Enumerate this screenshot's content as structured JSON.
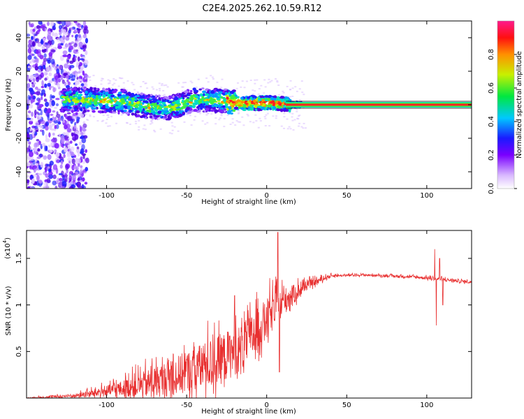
{
  "title": "C2E4.2025.262.10.59.R12",
  "chart_data": [
    {
      "type": "heatmap",
      "name": "spectrogram",
      "xlabel": "Height of straight line (km)",
      "ylabel": "Frequency (Hz)",
      "xlim": [
        -150,
        128
      ],
      "ylim": [
        -50,
        50
      ],
      "xticks": [
        -100,
        -50,
        0,
        50,
        100
      ],
      "yticks": [
        -40,
        -20,
        0,
        20,
        40
      ],
      "colorbar": {
        "label": "Normalized spectral amplitude",
        "range": [
          0,
          1
        ],
        "ticks": [
          0.0,
          0.2,
          0.4,
          0.6,
          0.8
        ]
      },
      "ridge": {
        "description_points": [
          [
            -128,
            3
          ],
          [
            -110,
            3
          ],
          [
            -90,
            2
          ],
          [
            -75,
            -1
          ],
          [
            -60,
            -2
          ],
          [
            -45,
            3
          ],
          [
            -35,
            3
          ],
          [
            -25,
            2
          ],
          [
            -15,
            1
          ],
          [
            -5,
            1
          ],
          [
            5,
            1
          ],
          [
            15,
            0
          ],
          [
            128,
            0
          ]
        ]
      }
    },
    {
      "type": "line",
      "name": "snr",
      "xlabel": "Height of straight line (km)",
      "ylabel": "SNR (10 * v/v)",
      "yscale_label": "(x10",
      "yscale_exp": "4",
      "xlim": [
        -150,
        128
      ],
      "ylim": [
        0,
        1.8
      ],
      "xticks": [
        -100,
        -50,
        0,
        50,
        100
      ],
      "yticks": [
        0.5,
        1.0,
        1.5
      ],
      "series": [
        {
          "name": "SNR",
          "color": "#e83030",
          "envelope": [
            {
              "x": -150,
              "base": 0.0,
              "amp": 0.01
            },
            {
              "x": -120,
              "base": 0.02,
              "amp": 0.04
            },
            {
              "x": -105,
              "base": 0.05,
              "amp": 0.1
            },
            {
              "x": -90,
              "base": 0.08,
              "amp": 0.18
            },
            {
              "x": -75,
              "base": 0.12,
              "amp": 0.3
            },
            {
              "x": -60,
              "base": 0.18,
              "amp": 0.4
            },
            {
              "x": -45,
              "base": 0.25,
              "amp": 0.5
            },
            {
              "x": -30,
              "base": 0.35,
              "amp": 0.55
            },
            {
              "x": -15,
              "base": 0.5,
              "amp": 0.5
            },
            {
              "x": 0,
              "base": 0.8,
              "amp": 0.45
            },
            {
              "x": 10,
              "base": 1.0,
              "amp": 0.3
            },
            {
              "x": 25,
              "base": 1.2,
              "amp": 0.1
            },
            {
              "x": 40,
              "base": 1.31,
              "amp": 0.03
            },
            {
              "x": 60,
              "base": 1.32,
              "amp": 0.02
            },
            {
              "x": 90,
              "base": 1.3,
              "amp": 0.03
            },
            {
              "x": 110,
              "base": 1.27,
              "amp": 0.04
            },
            {
              "x": 128,
              "base": 1.24,
              "amp": 0.03
            }
          ],
          "spikes": [
            {
              "x": 7,
              "y": 1.78
            },
            {
              "x": 8,
              "y": 0.28
            },
            {
              "x": -20,
              "y": 1.1
            },
            {
              "x": -12,
              "y": 1.0
            },
            {
              "x": 105,
              "y": 1.6
            },
            {
              "x": 106,
              "y": 0.78
            },
            {
              "x": 108,
              "y": 1.5
            },
            {
              "x": 110,
              "y": 1.0
            }
          ]
        }
      ]
    }
  ]
}
